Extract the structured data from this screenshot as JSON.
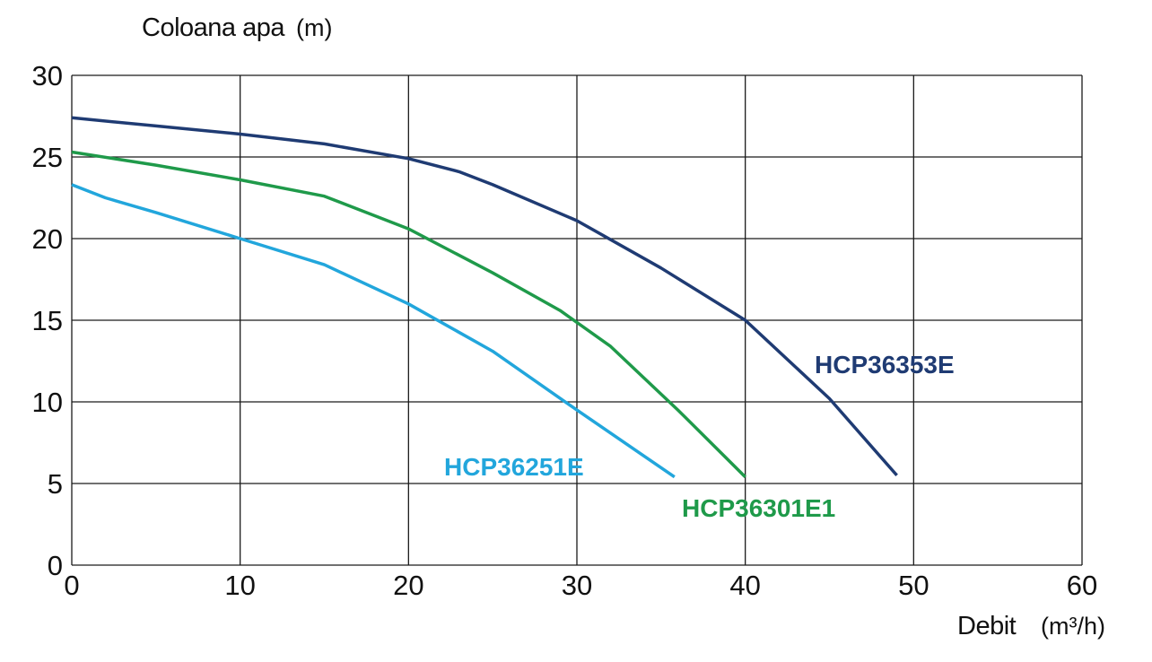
{
  "chart_data": {
    "type": "line",
    "ylabel": "Coloana apa",
    "ylabel_unit": "(m)",
    "xlabel": "Debit",
    "xlabel_unit": "(m³/h)",
    "xlim": [
      0,
      60
    ],
    "ylim": [
      0,
      30
    ],
    "x_ticks": [
      0,
      10,
      20,
      30,
      40,
      50,
      60
    ],
    "y_ticks": [
      0,
      5,
      10,
      15,
      20,
      25,
      30
    ],
    "grid": true,
    "series": [
      {
        "name": "HCP36353E",
        "color": "#1f3b73",
        "x": [
          0,
          5,
          10,
          15,
          20,
          23,
          25,
          30,
          35,
          40,
          45,
          49
        ],
        "y": [
          27.4,
          26.9,
          26.4,
          25.8,
          24.9,
          24.1,
          23.3,
          21.1,
          18.2,
          15.0,
          10.2,
          5.5
        ]
      },
      {
        "name": "HCP36301E1",
        "color": "#1f9a4a",
        "x": [
          0,
          5,
          10,
          15,
          20,
          25,
          29,
          32,
          36,
          40
        ],
        "y": [
          25.3,
          24.5,
          23.6,
          22.6,
          20.6,
          17.9,
          15.6,
          13.4,
          9.5,
          5.4
        ]
      },
      {
        "name": "HCP36251E",
        "color": "#22a6dc",
        "x": [
          0,
          2,
          5,
          10,
          15,
          20,
          25,
          30,
          35.8
        ],
        "y": [
          23.3,
          22.5,
          21.6,
          20.0,
          18.4,
          16.0,
          13.1,
          9.5,
          5.4
        ]
      }
    ]
  }
}
